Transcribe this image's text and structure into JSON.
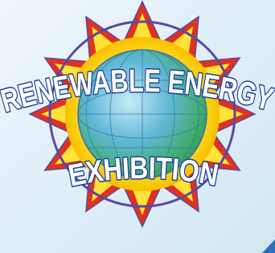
{
  "logo": {
    "line1": "RENEWABLE ENERGY",
    "line2": "EXHIBITION"
  }
}
